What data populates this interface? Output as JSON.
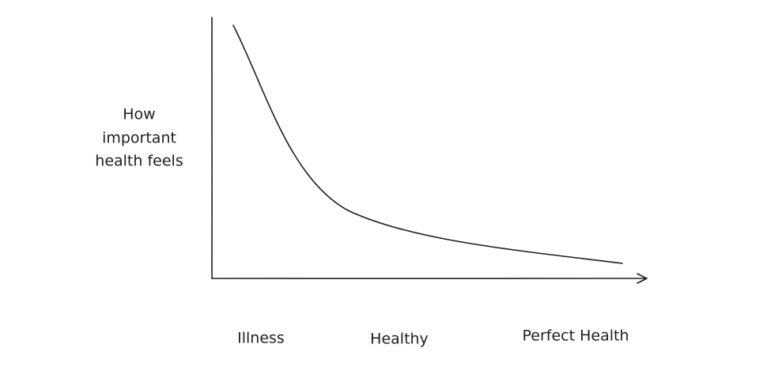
{
  "y_axis_label": [
    "How",
    "important",
    "health feels"
  ],
  "x_axis_labels": [
    "Illness",
    "Healthy",
    "Perfect Health"
  ]
}
